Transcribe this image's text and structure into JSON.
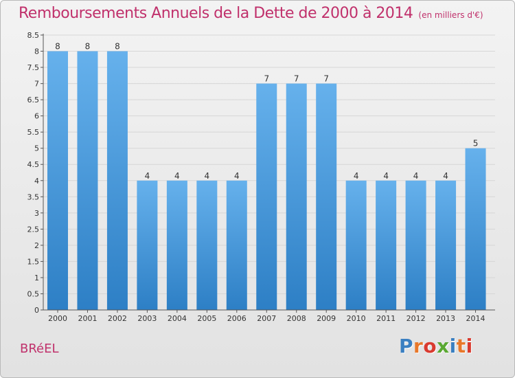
{
  "title": "Remboursements Annuels de la Dette de 2000 à 2014",
  "subtitle": "(en milliers d'€)",
  "commune": "BRéEL",
  "logo": {
    "text": "Proxiti",
    "colors": [
      "#3a7fc1",
      "#e8782a",
      "#d93a2f",
      "#5aa832",
      "#3a7fc1",
      "#e8782a",
      "#d93a2f"
    ]
  },
  "colors": {
    "bar_light": "#66b1ec",
    "bar_dark": "#2d7fc5",
    "title": "#c0306b",
    "grid": "#d6d6d6"
  },
  "chart_data": {
    "type": "bar",
    "title": "Remboursements Annuels de la Dette de 2000 à 2014",
    "xlabel": "",
    "ylabel": "",
    "ylim": [
      0,
      8.5
    ],
    "yticks": [
      0,
      0.5,
      1,
      1.5,
      2,
      2.5,
      3,
      3.5,
      4,
      4.5,
      5,
      5.5,
      6,
      6.5,
      7,
      7.5,
      8,
      8.5
    ],
    "ytick_labels": [
      "0",
      "0.5",
      "1",
      "1.5",
      "2",
      "2.5",
      "3",
      "3.5",
      "4",
      "4.5",
      "5",
      "5.5",
      "6",
      "6.5",
      "7",
      "7.5",
      "8",
      "8.5"
    ],
    "grid": true,
    "categories": [
      "2000",
      "2001",
      "2002",
      "2003",
      "2004",
      "2005",
      "2006",
      "2007",
      "2008",
      "2009",
      "2010",
      "2011",
      "2012",
      "2013",
      "2014"
    ],
    "values": [
      8,
      8,
      8,
      4,
      4,
      4,
      4,
      7,
      7,
      7,
      4,
      4,
      4,
      4,
      5
    ],
    "value_labels": [
      "8",
      "8",
      "8",
      "4",
      "4",
      "4",
      "4",
      "7",
      "7",
      "7",
      "4",
      "4",
      "4",
      "4",
      "5"
    ]
  }
}
